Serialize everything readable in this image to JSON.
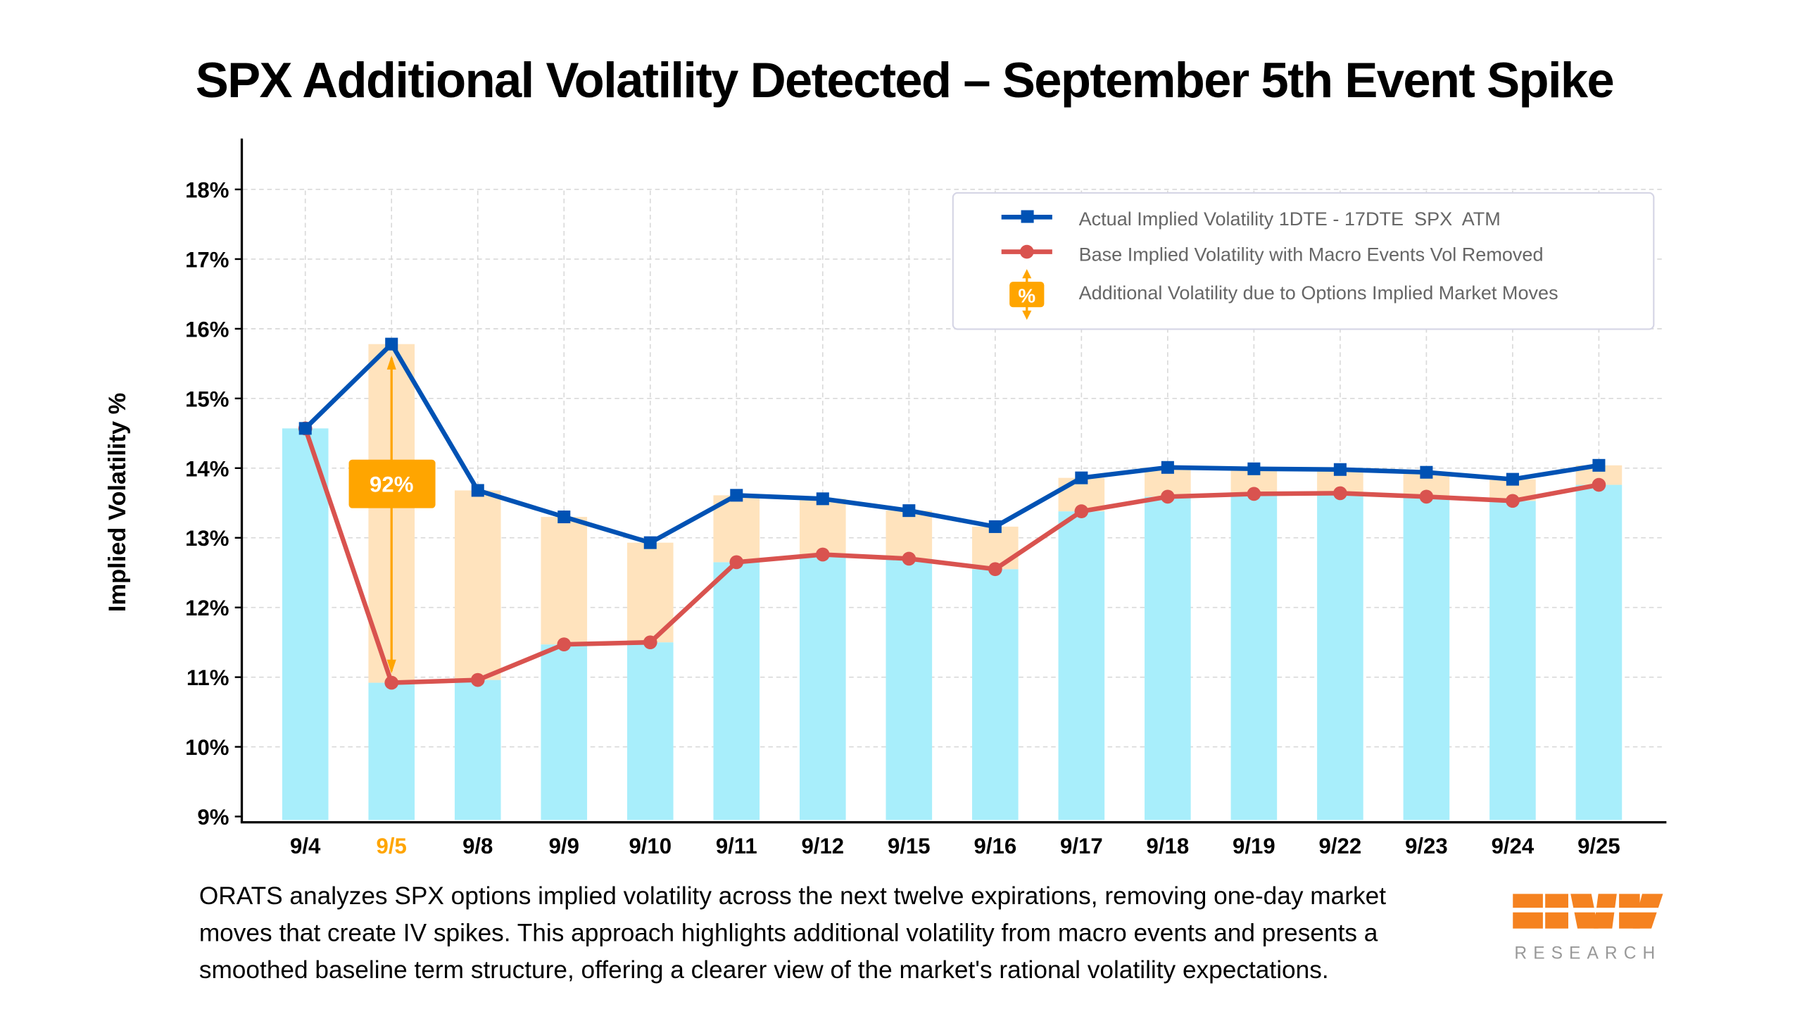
{
  "chart_data": {
    "type": "line",
    "title": "SPX Additional Volatility Detected – September 5th Event Spike",
    "xlabel": "",
    "ylabel": "Implied Volatility %",
    "ylim": [
      9,
      18
    ],
    "yticks": [
      "9%",
      "10%",
      "11%",
      "12%",
      "13%",
      "14%",
      "15%",
      "16%",
      "17%",
      "18%"
    ],
    "categories": [
      "9/4",
      "9/5",
      "9/8",
      "9/9",
      "9/10",
      "9/11",
      "9/12",
      "9/15",
      "9/16",
      "9/17",
      "9/18",
      "9/19",
      "9/22",
      "9/23",
      "9/24",
      "9/25"
    ],
    "highlight_category": "9/5",
    "grid": true,
    "legend_position": "top-right",
    "series": [
      {
        "name": "Actual Implied Volatility 1DTE - 17DTE  SPX  ATM",
        "color": "#0052B4",
        "marker": "square",
        "values": [
          14.57,
          15.78,
          13.68,
          13.3,
          12.93,
          13.61,
          13.56,
          13.39,
          13.16,
          13.86,
          14.01,
          13.99,
          13.98,
          13.94,
          13.84,
          14.04
        ]
      },
      {
        "name": "Base Implied Volatility with Macro Events Vol Removed",
        "color": "#D9534F",
        "marker": "circle",
        "values": [
          14.57,
          10.92,
          10.96,
          11.47,
          11.5,
          12.65,
          12.76,
          12.7,
          12.55,
          13.38,
          13.59,
          13.63,
          13.64,
          13.59,
          13.53,
          13.76
        ]
      }
    ],
    "bars": {
      "base_color": "#A8EEFB",
      "additional_color": "#FFE3BD"
    },
    "additional_legend": "Additional Volatility due to Options Implied Market Moves",
    "legend_icon_text": "%",
    "annotation": {
      "category": "9/5",
      "label": "92%",
      "color": "#FFA500"
    }
  },
  "footer": {
    "lines": [
      "ORATS analyzes SPX options implied volatility across the next twelve expirations, removing one-day market",
      "moves that create IV spikes. This approach highlights additional volatility from macro events and presents a",
      "smoothed baseline term structure, offering a clearer view of the market's rational volatility expectations."
    ]
  },
  "logo": {
    "name": "ORATS",
    "subtitle": "RESEARCH",
    "color": "#F58220"
  }
}
